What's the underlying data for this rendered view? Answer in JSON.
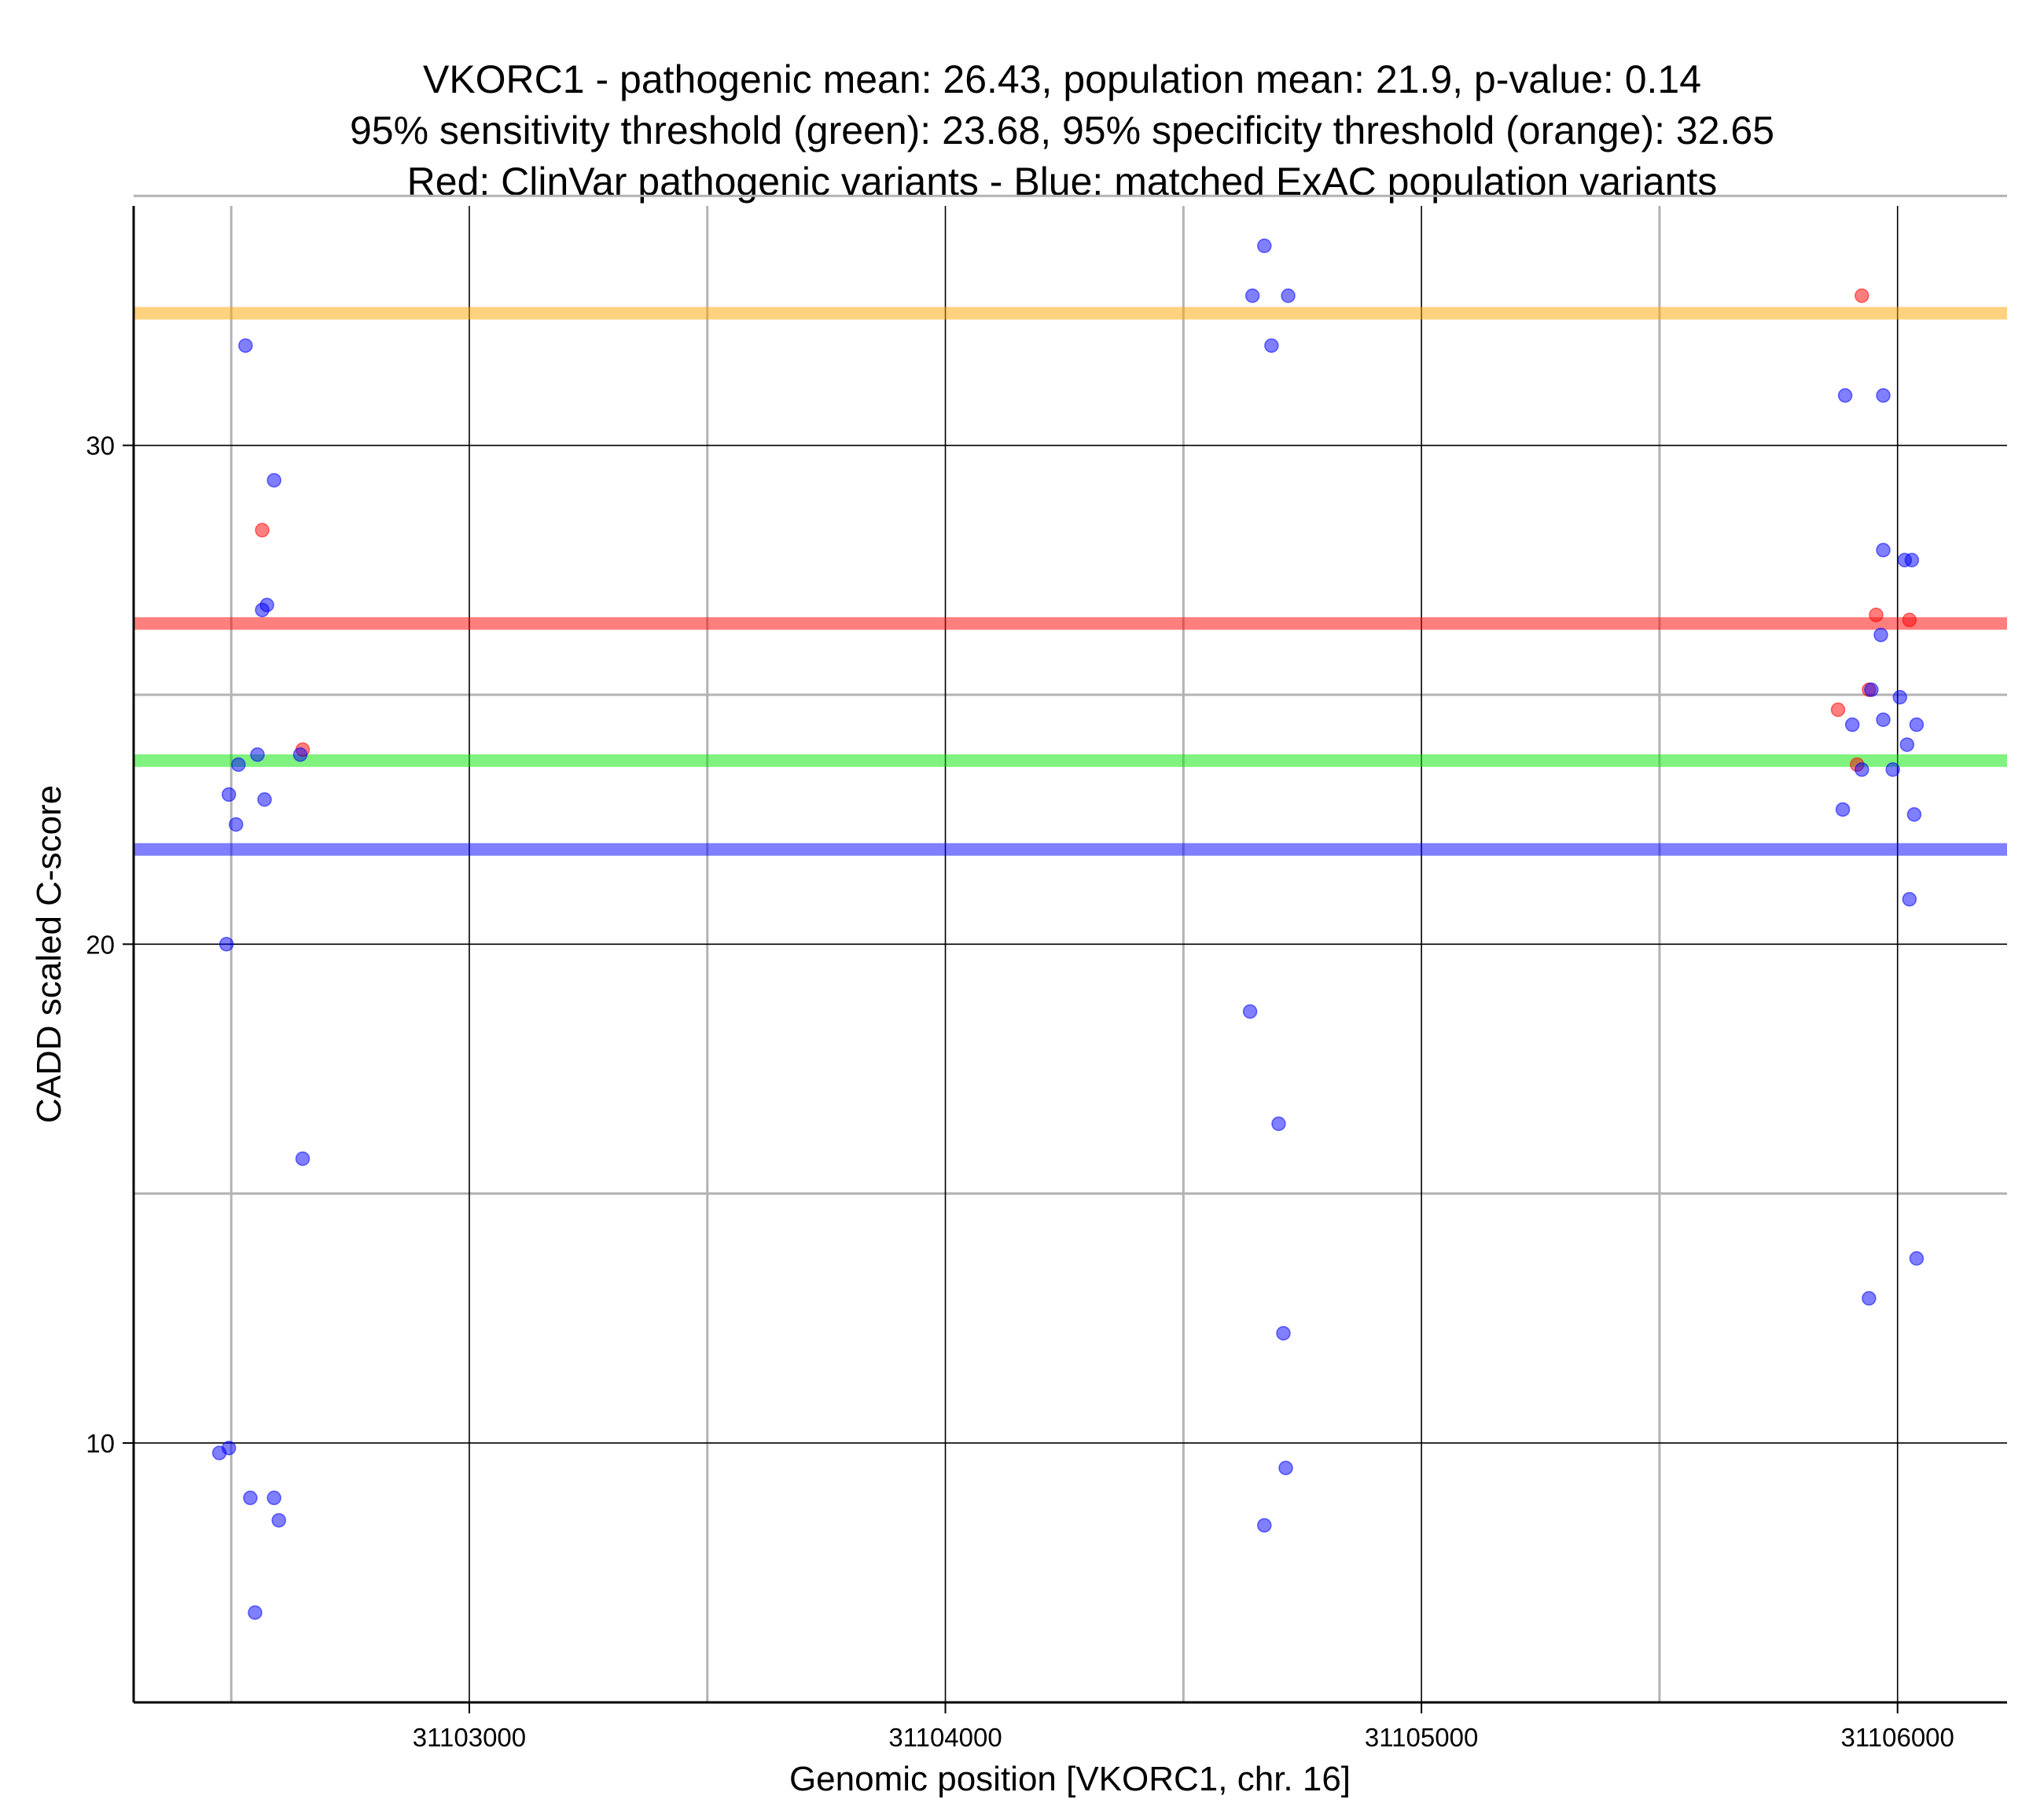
{
  "chart_data": {
    "type": "scatter",
    "title": [
      "VKORC1 - pathogenic mean: 26.43, population mean: 21.9, p-value: 0.14",
      "95% sensitivity threshold (green): 23.68, 95% specificity threshold (orange): 32.65",
      "Red: ClinVar pathogenic variants - Blue: matched ExAC population variants"
    ],
    "xlabel": "Genomic position [VKORC1, chr. 16]",
    "ylabel": "CADD scaled C-score",
    "xlim": [
      31102295,
      31106230
    ],
    "ylim": [
      4.8,
      34.8
    ],
    "x_major_ticks": [
      31103000,
      31104000,
      31105000,
      31106000
    ],
    "x_tick_labels": [
      "31103000",
      "31104000",
      "31105000",
      "31106000"
    ],
    "x_minor_grid": [
      31102500,
      31103500,
      31104500,
      31105500
    ],
    "y_major_ticks": [
      10,
      20,
      30
    ],
    "y_tick_labels": [
      "10",
      "20",
      "30"
    ],
    "y_minor_grid": [
      15,
      25,
      35
    ],
    "colors": {
      "pathogenic": "#ff0000",
      "population": "#0000ff",
      "sensitivity": "#00e600",
      "specificity": "#ffa500",
      "grid_major": "#000000",
      "grid_minor": "#b3b3b3"
    },
    "reference_lines": [
      {
        "name": "specificity-threshold",
        "label": "95% specificity threshold (orange)",
        "value": 32.65,
        "color": "#ffa500"
      },
      {
        "name": "pathogenic-mean",
        "label": "pathogenic mean",
        "value": 26.43,
        "color": "#ff0000"
      },
      {
        "name": "sensitivity-threshold",
        "label": "95% sensitivity threshold (green)",
        "value": 23.68,
        "color": "#00e600"
      },
      {
        "name": "population-mean",
        "label": "population mean",
        "value": 21.9,
        "color": "#0000ff"
      }
    ],
    "series": [
      {
        "name": "ClinVar pathogenic variants",
        "color": "#ff0000",
        "points": [
          {
            "x": 31102565,
            "y": 28.3
          },
          {
            "x": 31102650,
            "y": 23.9
          },
          {
            "x": 31105925,
            "y": 33.0
          },
          {
            "x": 31105955,
            "y": 26.6
          },
          {
            "x": 31106025,
            "y": 26.5
          },
          {
            "x": 31105940,
            "y": 25.1
          },
          {
            "x": 31105875,
            "y": 24.7
          },
          {
            "x": 31105915,
            "y": 23.6
          }
        ]
      },
      {
        "name": "matched ExAC population variants",
        "color": "#0000ff",
        "points": [
          {
            "x": 31102530,
            "y": 32.0
          },
          {
            "x": 31102590,
            "y": 29.3
          },
          {
            "x": 31102575,
            "y": 26.8
          },
          {
            "x": 31102565,
            "y": 26.7
          },
          {
            "x": 31102555,
            "y": 23.8
          },
          {
            "x": 31102515,
            "y": 23.6
          },
          {
            "x": 31102645,
            "y": 23.8
          },
          {
            "x": 31102495,
            "y": 23.0
          },
          {
            "x": 31102570,
            "y": 22.9
          },
          {
            "x": 31102510,
            "y": 22.4
          },
          {
            "x": 31102490,
            "y": 20.0
          },
          {
            "x": 31102650,
            "y": 15.7
          },
          {
            "x": 31102475,
            "y": 9.8
          },
          {
            "x": 31102495,
            "y": 9.9
          },
          {
            "x": 31102540,
            "y": 8.9
          },
          {
            "x": 31102590,
            "y": 8.9
          },
          {
            "x": 31102600,
            "y": 8.45
          },
          {
            "x": 31102550,
            "y": 6.6
          },
          {
            "x": 31104670,
            "y": 34.0
          },
          {
            "x": 31104645,
            "y": 33.0
          },
          {
            "x": 31104720,
            "y": 33.0
          },
          {
            "x": 31104685,
            "y": 32.0
          },
          {
            "x": 31104640,
            "y": 18.65
          },
          {
            "x": 31104700,
            "y": 16.4
          },
          {
            "x": 31104710,
            "y": 12.2
          },
          {
            "x": 31104715,
            "y": 9.5
          },
          {
            "x": 31104670,
            "y": 8.35
          },
          {
            "x": 31105890,
            "y": 31.0
          },
          {
            "x": 31105970,
            "y": 31.0
          },
          {
            "x": 31105970,
            "y": 27.9
          },
          {
            "x": 31106015,
            "y": 27.7
          },
          {
            "x": 31106030,
            "y": 27.7
          },
          {
            "x": 31105965,
            "y": 26.2
          },
          {
            "x": 31105945,
            "y": 25.1
          },
          {
            "x": 31106005,
            "y": 24.95
          },
          {
            "x": 31105905,
            "y": 24.4
          },
          {
            "x": 31105970,
            "y": 24.5
          },
          {
            "x": 31106040,
            "y": 24.4
          },
          {
            "x": 31106020,
            "y": 24.0
          },
          {
            "x": 31105925,
            "y": 23.5
          },
          {
            "x": 31105990,
            "y": 23.5
          },
          {
            "x": 31105885,
            "y": 22.7
          },
          {
            "x": 31106035,
            "y": 22.6
          },
          {
            "x": 31106025,
            "y": 20.9
          },
          {
            "x": 31106040,
            "y": 13.7
          },
          {
            "x": 31105940,
            "y": 12.9
          }
        ]
      }
    ],
    "grid": true,
    "legend": "none"
  }
}
